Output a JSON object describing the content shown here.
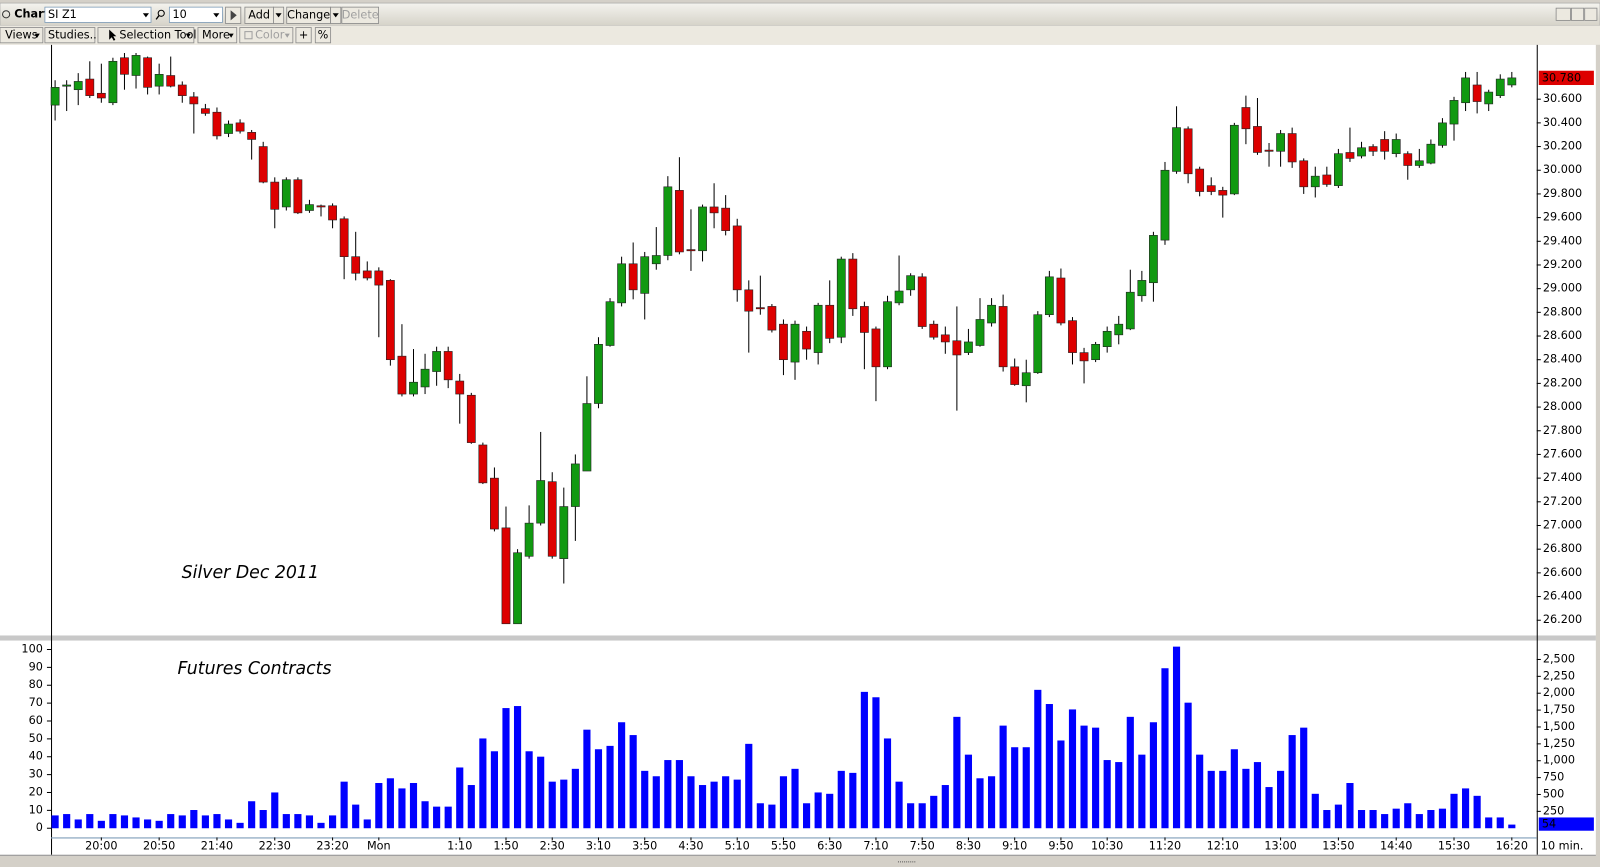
{
  "toolbar": {
    "window_title": "Chart",
    "symbol": "SI Z1",
    "interval_input": "10",
    "add": "Add",
    "change": "Change",
    "delete": "Delete",
    "views": "Views",
    "studies": "Studies...",
    "selection_tool": "Selection Tool",
    "more": "More",
    "color": "Color",
    "crosshair": "+",
    "percent": "%"
  },
  "chart_data": [
    {
      "type": "candlestick",
      "annotation": "Silver Dec 2011",
      "up_color": "#119911",
      "down_color": "#dd0000",
      "ylim": [
        26.08,
        31.05
      ],
      "yticks": [
        {
          "value": 26.2,
          "label": "26.200"
        },
        {
          "value": 26.4,
          "label": "26.400"
        },
        {
          "value": 26.6,
          "label": "26.600"
        },
        {
          "value": 26.8,
          "label": "26.800"
        },
        {
          "value": 27.0,
          "label": "27.000"
        },
        {
          "value": 27.2,
          "label": "27.200"
        },
        {
          "value": 27.4,
          "label": "27.400"
        },
        {
          "value": 27.6,
          "label": "27.600"
        },
        {
          "value": 27.8,
          "label": "27.800"
        },
        {
          "value": 28.0,
          "label": "28.000"
        },
        {
          "value": 28.2,
          "label": "28.200"
        },
        {
          "value": 28.4,
          "label": "28.400"
        },
        {
          "value": 28.6,
          "label": "28.600"
        },
        {
          "value": 28.8,
          "label": "28.800"
        },
        {
          "value": 29.0,
          "label": "29.000"
        },
        {
          "value": 29.2,
          "label": "29.200"
        },
        {
          "value": 29.4,
          "label": "29.400"
        },
        {
          "value": 29.6,
          "label": "29.600"
        },
        {
          "value": 29.8,
          "label": "29.800"
        },
        {
          "value": 30.0,
          "label": "30.000"
        },
        {
          "value": 30.2,
          "label": "30.200"
        },
        {
          "value": 30.4,
          "label": "30.400"
        },
        {
          "value": 30.6,
          "label": "30.600"
        }
      ],
      "last_label": "30.780",
      "last_color": "#dd0000",
      "open": [
        30.55,
        30.71,
        30.68,
        30.77,
        30.65,
        30.57,
        30.95,
        30.8,
        30.95,
        30.71,
        30.8,
        30.72,
        30.62,
        30.52,
        30.49,
        30.31,
        30.4,
        30.32,
        30.2,
        29.9,
        29.69,
        29.92,
        29.66,
        29.7,
        29.7,
        29.59,
        29.27,
        29.15,
        29.15,
        29.07,
        28.43,
        28.11,
        28.17,
        28.3,
        28.47,
        28.22,
        28.1,
        27.68,
        27.4,
        26.98,
        26.17,
        26.74,
        27.02,
        27.37,
        26.72,
        27.16,
        27.46,
        28.03,
        28.52,
        28.88,
        29.21,
        28.96,
        29.21,
        29.28,
        29.83,
        29.33,
        29.32,
        29.69,
        29.68,
        29.53,
        28.99,
        28.84,
        28.85,
        28.7,
        28.38,
        28.64,
        28.46,
        28.86,
        28.59,
        29.25,
        28.85,
        28.66,
        28.34,
        28.88,
        28.99,
        29.1,
        28.7,
        28.61,
        28.56,
        28.46,
        28.52,
        28.71,
        28.85,
        28.34,
        28.18,
        28.29,
        28.78,
        29.09,
        28.73,
        28.46,
        28.4,
        28.51,
        28.61,
        28.66,
        28.94,
        29.05,
        29.41,
        29.99,
        30.35,
        30.01,
        29.87,
        29.83,
        29.8,
        30.53,
        30.37,
        30.17,
        30.16,
        30.31,
        30.08,
        29.86,
        29.96,
        29.87,
        30.15,
        30.12,
        30.2,
        30.26,
        30.14,
        30.14,
        30.04,
        30.06,
        30.21,
        30.39,
        30.57,
        30.72,
        30.56,
        30.63,
        30.72
      ],
      "high": [
        30.76,
        30.76,
        30.82,
        30.92,
        30.9,
        30.95,
        30.99,
        30.99,
        30.96,
        30.9,
        30.96,
        30.75,
        30.66,
        30.56,
        30.53,
        30.42,
        30.43,
        30.34,
        30.24,
        29.94,
        29.94,
        29.94,
        29.75,
        29.71,
        29.72,
        29.61,
        29.48,
        29.23,
        29.18,
        29.08,
        28.7,
        28.49,
        28.45,
        28.51,
        28.51,
        28.28,
        28.12,
        27.7,
        27.49,
        27.16,
        26.8,
        27.17,
        27.79,
        27.45,
        27.32,
        27.6,
        28.26,
        28.59,
        28.92,
        29.27,
        29.39,
        29.31,
        29.52,
        29.95,
        30.11,
        29.67,
        29.71,
        29.89,
        29.79,
        29.59,
        29.07,
        29.11,
        28.87,
        28.74,
        28.73,
        28.68,
        28.88,
        29.07,
        29.27,
        29.3,
        28.89,
        28.68,
        28.94,
        29.28,
        29.13,
        29.13,
        28.73,
        28.68,
        28.85,
        28.66,
        28.92,
        28.92,
        28.95,
        28.41,
        28.4,
        28.81,
        29.15,
        29.17,
        28.76,
        28.5,
        28.55,
        28.68,
        28.77,
        29.16,
        29.15,
        29.48,
        30.07,
        30.54,
        30.37,
        30.03,
        29.94,
        29.86,
        30.4,
        30.63,
        30.61,
        30.23,
        30.34,
        30.36,
        30.1,
        30.03,
        30.03,
        30.18,
        30.36,
        30.24,
        30.22,
        30.33,
        30.31,
        30.16,
        30.18,
        30.26,
        30.44,
        30.62,
        30.83,
        30.83,
        30.68,
        30.81,
        30.83
      ],
      "low": [
        30.42,
        30.5,
        30.55,
        30.61,
        30.57,
        30.55,
        30.68,
        30.69,
        30.64,
        30.64,
        30.7,
        30.57,
        30.31,
        30.46,
        30.26,
        30.28,
        30.31,
        30.09,
        29.89,
        29.51,
        29.66,
        29.63,
        29.64,
        29.61,
        29.51,
        29.08,
        29.07,
        29.07,
        28.59,
        28.35,
        28.09,
        28.09,
        28.11,
        28.18,
        28.16,
        27.86,
        27.69,
        27.35,
        26.95,
        26.17,
        26.17,
        26.72,
        27.0,
        26.72,
        26.51,
        26.87,
        27.46,
        27.99,
        28.51,
        28.85,
        28.91,
        28.74,
        29.16,
        29.24,
        29.29,
        29.15,
        29.23,
        29.51,
        29.45,
        28.89,
        28.46,
        28.78,
        28.63,
        28.27,
        28.23,
        28.4,
        28.36,
        28.54,
        28.54,
        28.77,
        28.32,
        28.05,
        28.32,
        28.86,
        28.94,
        28.66,
        28.57,
        28.45,
        27.97,
        28.44,
        28.51,
        28.68,
        28.3,
        28.18,
        28.04,
        28.28,
        28.76,
        28.69,
        28.36,
        28.2,
        28.38,
        28.46,
        28.53,
        28.65,
        28.89,
        28.89,
        29.37,
        29.97,
        29.89,
        29.78,
        29.79,
        29.6,
        29.79,
        30.22,
        30.13,
        30.03,
        30.03,
        30.02,
        29.8,
        29.77,
        29.86,
        29.85,
        30.07,
        30.1,
        30.12,
        30.09,
        30.11,
        29.92,
        30.02,
        30.05,
        30.19,
        30.25,
        30.5,
        30.48,
        30.5,
        30.61,
        30.7
      ],
      "close": [
        30.7,
        30.72,
        30.75,
        30.63,
        30.61,
        30.92,
        30.81,
        30.97,
        30.7,
        30.81,
        30.71,
        30.63,
        30.56,
        30.48,
        30.29,
        30.39,
        30.33,
        30.26,
        29.9,
        29.67,
        29.92,
        29.64,
        29.71,
        29.69,
        29.58,
        29.27,
        29.13,
        29.09,
        29.03,
        28.4,
        28.11,
        28.21,
        28.32,
        28.47,
        28.23,
        28.11,
        27.7,
        27.36,
        26.97,
        26.17,
        26.77,
        27.02,
        27.38,
        26.74,
        27.16,
        27.52,
        28.03,
        28.53,
        28.89,
        29.21,
        28.99,
        29.27,
        29.28,
        29.86,
        29.31,
        29.32,
        29.69,
        29.64,
        29.49,
        28.99,
        28.81,
        28.83,
        28.65,
        28.4,
        28.7,
        28.49,
        28.86,
        28.58,
        29.25,
        28.83,
        28.63,
        28.34,
        28.89,
        28.98,
        29.11,
        28.68,
        28.59,
        28.55,
        28.44,
        28.55,
        28.74,
        28.86,
        28.34,
        28.19,
        28.29,
        28.78,
        29.1,
        28.71,
        28.46,
        28.39,
        28.53,
        28.64,
        28.7,
        28.97,
        29.07,
        29.45,
        30.0,
        30.36,
        29.97,
        29.82,
        29.82,
        29.79,
        30.38,
        30.35,
        30.15,
        30.16,
        30.31,
        30.07,
        29.86,
        29.95,
        29.88,
        30.14,
        30.1,
        30.19,
        30.16,
        30.16,
        30.26,
        30.04,
        30.08,
        30.22,
        30.4,
        30.59,
        30.78,
        30.58,
        30.66,
        30.77,
        30.78
      ]
    },
    {
      "type": "bar",
      "annotation": "Futures Contracts",
      "x_unit": "10 min.",
      "color": "#0000ff",
      "axis": "y2",
      "ylim": [
        0,
        105
      ],
      "yticks": [
        0,
        10,
        20,
        30,
        40,
        50,
        60,
        70,
        80,
        90,
        100
      ],
      "y2lim": [
        0,
        2780
      ],
      "y2ticks": [
        250,
        500,
        750,
        {
          "value": 1000,
          "label": "1,000"
        },
        {
          "value": 1250,
          "label": "1,250"
        },
        {
          "value": 1500,
          "label": "1,500"
        },
        {
          "value": 1750,
          "label": "1,750"
        },
        {
          "value": 2000,
          "label": "2,000"
        },
        {
          "value": 2250,
          "label": "2,250"
        },
        {
          "value": 2500,
          "label": "2,500"
        }
      ],
      "categories": [
        null,
        null,
        null,
        null,
        "20:00",
        null,
        null,
        null,
        null,
        "20:50",
        null,
        null,
        null,
        null,
        "21:40",
        null,
        null,
        null,
        null,
        "22:30",
        null,
        null,
        null,
        null,
        "23:20",
        null,
        null,
        null,
        "Mon",
        null,
        null,
        null,
        null,
        null,
        null,
        "1:10",
        null,
        null,
        null,
        "1:50",
        null,
        null,
        null,
        "2:30",
        null,
        null,
        null,
        "3:10",
        null,
        null,
        null,
        "3:50",
        null,
        null,
        null,
        "4:30",
        null,
        null,
        null,
        "5:10",
        null,
        null,
        null,
        "5:50",
        null,
        null,
        null,
        "6:30",
        null,
        null,
        null,
        "7:10",
        null,
        null,
        null,
        "7:50",
        null,
        null,
        null,
        "8:30",
        null,
        null,
        null,
        "9:10",
        null,
        null,
        null,
        "9:50",
        null,
        null,
        null,
        "10:30",
        null,
        null,
        null,
        null,
        "11:20",
        null,
        null,
        null,
        null,
        "12:10",
        null,
        null,
        null,
        null,
        "13:00",
        null,
        null,
        null,
        null,
        "13:50",
        null,
        null,
        null,
        null,
        "14:40",
        null,
        null,
        null,
        null,
        "15:30",
        null,
        null,
        null,
        null,
        "16:20"
      ],
      "values": [
        190,
        210,
        130,
        210,
        110,
        210,
        190,
        160,
        130,
        110,
        210,
        190,
        270,
        190,
        210,
        130,
        80,
        400,
        270,
        530,
        210,
        210,
        190,
        80,
        190,
        690,
        350,
        130,
        670,
        740,
        590,
        670,
        400,
        320,
        320,
        900,
        640,
        1330,
        1140,
        1780,
        1810,
        1140,
        1060,
        690,
        720,
        880,
        1460,
        1170,
        1220,
        1570,
        1380,
        850,
        770,
        1010,
        1010,
        770,
        640,
        690,
        770,
        720,
        1250,
        370,
        350,
        770,
        880,
        370,
        530,
        510,
        850,
        820,
        2020,
        1940,
        1330,
        690,
        370,
        370,
        480,
        640,
        1650,
        1090,
        740,
        770,
        1520,
        1200,
        1200,
        2050,
        1840,
        1300,
        1760,
        1520,
        1490,
        1010,
        980,
        1650,
        1090,
        1570,
        2370,
        2690,
        1860,
        1090,
        850,
        850,
        1170,
        880,
        980,
        610,
        850,
        1380,
        1490,
        510,
        270,
        350,
        670,
        270,
        270,
        210,
        290,
        370,
        210,
        270,
        290,
        510,
        590,
        480,
        160,
        160,
        54
      ]
    }
  ]
}
